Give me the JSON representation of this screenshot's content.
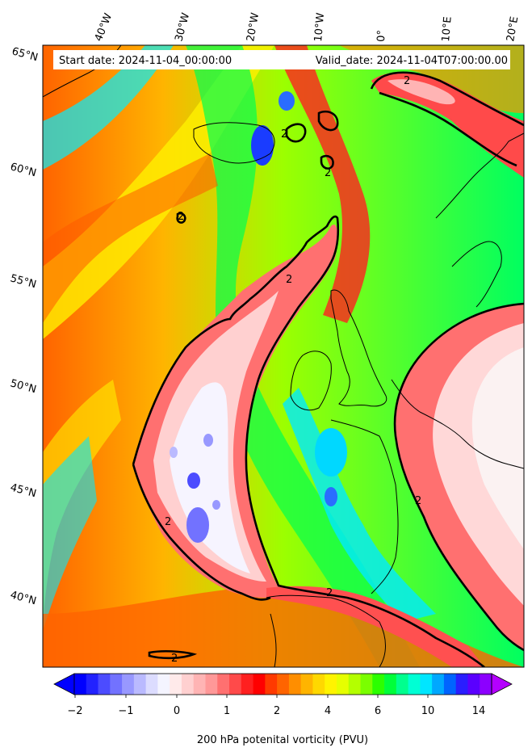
{
  "map": {
    "start_date_text": "Start date: 2024-11-04_00:00:00",
    "valid_date_text": "Valid_date: 2024-11-04T07:00:00.00",
    "longitude_labels": [
      "40°W",
      "30°W",
      "20°W",
      "10°W",
      "0°",
      "10°E",
      "20°E"
    ],
    "latitude_labels": [
      "65°N",
      "60°N",
      "55°N",
      "50°N",
      "45°N",
      "40°N"
    ],
    "contour_label": "2"
  },
  "colorbar": {
    "ticks": [
      "−2",
      "−1",
      "0",
      "1",
      "2",
      "4",
      "6",
      "10",
      "14"
    ],
    "label": "200 hPa potenital vorticity (PVU)",
    "colors": [
      "#0000ff",
      "#2222ff",
      "#4c4cff",
      "#7272ff",
      "#9898ff",
      "#babaff",
      "#dcdcff",
      "#f4f4ff",
      "#ffeaea",
      "#ffd0d0",
      "#ffb4b4",
      "#ff9898",
      "#ff7070",
      "#ff4a4a",
      "#ff2020",
      "#ff0000",
      "#ff3a00",
      "#ff6400",
      "#ff8e00",
      "#ffb400",
      "#ffd800",
      "#fff400",
      "#e6ff00",
      "#b4ff00",
      "#7aff00",
      "#2cff00",
      "#00ff3a",
      "#00ff8e",
      "#00ffd4",
      "#00e6ff",
      "#00a8ff",
      "#0064ff",
      "#2a1eff",
      "#5a00ff",
      "#8c00ff"
    ],
    "extend_low_color": "#0000ff",
    "extend_high_color": "#b400ff"
  }
}
